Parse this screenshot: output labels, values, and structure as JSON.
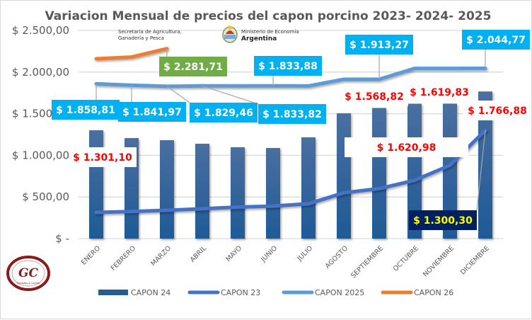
{
  "chart_data": {
    "type": "bar",
    "title": "Variacion Mensual de precios del capon porcino 2023- 2024- 2025",
    "xlabel": "",
    "ylabel": "",
    "ylim": [
      0,
      2500
    ],
    "grid": true,
    "legend_position": "bottom",
    "yticks": [
      0,
      500,
      1000,
      1500,
      2000,
      2500
    ],
    "ytick_labels": [
      "$ -",
      "$ 500,00",
      "$ 1.000,00",
      "$ 1.500,00",
      "$ 2.000,00",
      "$ 2.500,00"
    ],
    "categories": [
      "ENERO",
      "FEBRERO",
      "MARZO",
      "ABRIL",
      "MAYO",
      "JUNIO",
      "JULIO",
      "AGOSTO",
      "SEPTIEMBRE",
      "OCTUBRE",
      "NOVIEMBRE",
      "DICIEMBRE"
    ],
    "series": [
      {
        "name": "CAPON 24",
        "type": "bar",
        "color": "#255e91",
        "values": [
          1301.1,
          1207,
          1182,
          1139,
          1097,
          1088,
          1216,
          1505,
          1568.82,
          1619.83,
          1620.98,
          1766.88
        ]
      },
      {
        "name": "CAPON 23",
        "type": "line",
        "color": "#4472c4",
        "values": [
          315,
          325,
          340,
          358,
          378,
          390,
          418,
          550,
          600,
          700,
          880,
          1300.3
        ]
      },
      {
        "name": "CAPON 2025",
        "type": "line",
        "color": "#5b9bd5",
        "values": [
          1858.81,
          1841.97,
          1829.46,
          1833.82,
          1833.0,
          1833.88,
          1833.0,
          1913.0,
          1913.27,
          2044.0,
          2044.0,
          2044.77
        ]
      },
      {
        "name": "CAPON 26",
        "type": "line",
        "color": "#ed7d31",
        "values": [
          2160,
          2180,
          2281.71,
          null,
          null,
          null,
          null,
          null,
          null,
          null,
          null,
          null
        ]
      }
    ],
    "data_labels": [
      {
        "series": "CAPON 2025",
        "category": "ENERO",
        "text": "$ 1.858,81",
        "style": "blue"
      },
      {
        "series": "CAPON 2025",
        "category": "FEBRERO",
        "text": "$ 1.841,97",
        "style": "blue"
      },
      {
        "series": "CAPON 2025",
        "category": "MARZO",
        "text": "$ 1.829,46",
        "style": "blue"
      },
      {
        "series": "CAPON 2025",
        "category": "ABRIL",
        "text": "$ 1.833,82",
        "style": "blue"
      },
      {
        "series": "CAPON 2025",
        "category": "JUNIO",
        "text": "$ 1.833,88",
        "style": "blue"
      },
      {
        "series": "CAPON 2025",
        "category": "SEPTIEMBRE",
        "text": "$ 1.913,27",
        "style": "blue"
      },
      {
        "series": "CAPON 2025",
        "category": "DICIEMBRE",
        "text": "$ 2.044,77",
        "style": "blue"
      },
      {
        "series": "CAPON 26",
        "category": "MARZO",
        "text": "$ 2.281,71",
        "style": "green"
      },
      {
        "series": "CAPON 24",
        "category": "ENERO",
        "text": "$ 1.301,10",
        "style": "red"
      },
      {
        "series": "CAPON 24",
        "category": "SEPTIEMBRE",
        "text": "$ 1.568,82",
        "style": "red"
      },
      {
        "series": "CAPON 24",
        "category": "OCTUBRE",
        "text": "$ 1.619,83",
        "style": "red"
      },
      {
        "series": "CAPON 24",
        "category": "NOVIEMBRE",
        "text": "$ 1.620,98",
        "style": "red"
      },
      {
        "series": "CAPON 24",
        "category": "DICIEMBRE",
        "text": "$ 1.766,88",
        "style": "red"
      },
      {
        "series": "CAPON 23",
        "category": "DICIEMBRE",
        "text": "$ 1.300,30",
        "style": "navy"
      }
    ]
  },
  "colors": {
    "label_blue_bg": "#00b0f0",
    "label_green_bg": "#70ad47",
    "label_navy_bg": "#002060",
    "gridline": "#d9d9d9",
    "axis_text": "#595959"
  },
  "logos": {
    "secretaria_line1": "Secretaría de Agricultura,",
    "secretaria_line2": "Ganadería y Pesca",
    "ministerio_line1": "Ministerio de Economía",
    "ministerio_line2": "Argentina",
    "gc_initials": "GC",
    "gc_subtitle": "Ganados & Carnes"
  }
}
